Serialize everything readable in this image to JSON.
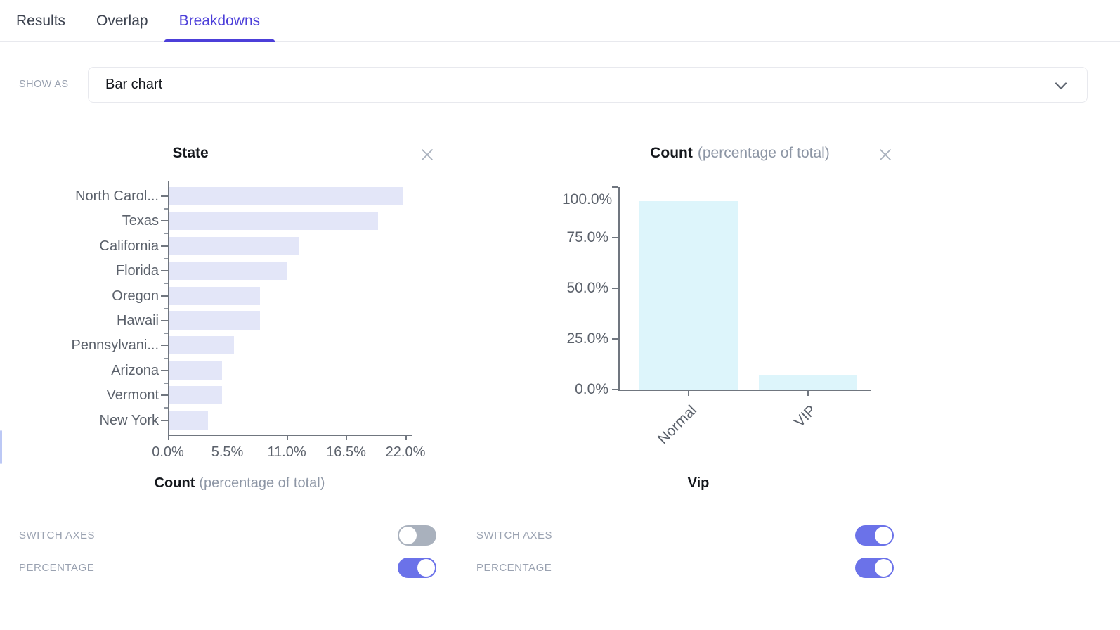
{
  "tabs": {
    "items": [
      {
        "label": "Results",
        "active": false
      },
      {
        "label": "Overlap",
        "active": false
      },
      {
        "label": "Breakdowns",
        "active": true
      }
    ]
  },
  "show_as": {
    "label": "SHOW AS",
    "value": "Bar chart"
  },
  "icons": {
    "select_chevron": "chevron-down-icon",
    "chart_close": "close-icon"
  },
  "chart_data": [
    {
      "id": "state",
      "type": "bar",
      "orientation": "horizontal",
      "title": "State",
      "categories": [
        "North Carol...",
        "Texas",
        "California",
        "Florida",
        "Oregon",
        "Hawaii",
        "Pennsylvani...",
        "Arizona",
        "Vermont",
        "New York"
      ],
      "values": [
        21.7,
        19.3,
        12.0,
        10.9,
        8.4,
        8.4,
        6.0,
        4.9,
        4.9,
        3.6
      ],
      "value_unit": "percent of total",
      "xticks": [
        "0.0%",
        "5.5%",
        "11.0%",
        "16.5%",
        "22.0%"
      ],
      "xlim": [
        0,
        22
      ],
      "xlabel_main": "Count",
      "xlabel_sub": "(percentage of total)",
      "bar_color": "#e3e6f8",
      "grid": false
    },
    {
      "id": "vip",
      "type": "bar",
      "orientation": "vertical",
      "title_main": "Count",
      "title_sub": "(percentage of total)",
      "categories": [
        "Normal",
        "VIP"
      ],
      "values": [
        93,
        7
      ],
      "value_unit": "percent of total",
      "yticks": [
        "100.0%",
        "75.0%",
        "50.0%",
        "25.0%",
        "0.0%"
      ],
      "ylim": [
        0,
        100
      ],
      "xlabel": "Vip",
      "bar_color": "#ddf5fb",
      "grid": false
    }
  ],
  "controls": {
    "left": {
      "switch_axes": {
        "label": "SWITCH AXES",
        "on": false
      },
      "percentage": {
        "label": "PERCENTAGE",
        "on": true
      }
    },
    "right": {
      "switch_axes": {
        "label": "SWITCH AXES",
        "on": true
      },
      "percentage": {
        "label": "PERCENTAGE",
        "on": true
      }
    }
  },
  "colors": {
    "accent": "#4c3fd9",
    "toggle_on": "#6b72e9",
    "toggle_off": "#a9b1bd",
    "bar_left": "#e3e6f8",
    "bar_right": "#ddf5fb",
    "axis": "#70767f",
    "label_gray": "#5b616b",
    "muted_gray": "#8d96a5"
  }
}
